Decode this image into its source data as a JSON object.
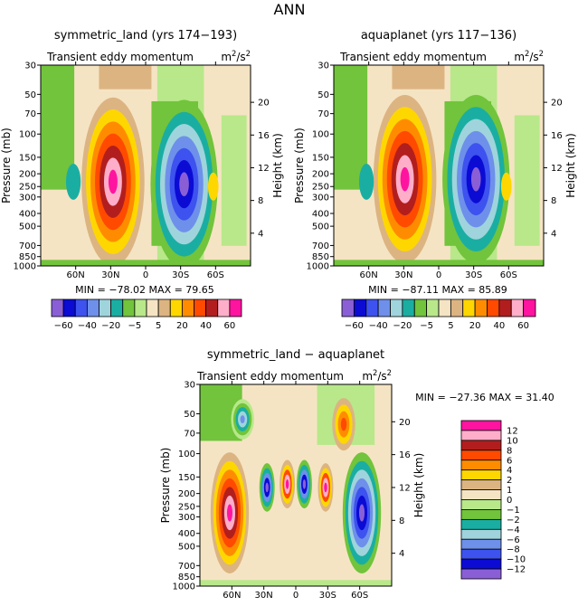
{
  "page": {
    "title": "ANN"
  },
  "colors": {
    "fill_order_low_to_high": [
      "#8a5fd6",
      "#0b0bd4",
      "#3d52ee",
      "#6e90ea",
      "#9fd4dc",
      "#1aaea2",
      "#71c43b",
      "#b8e88a",
      "#f5e4c3",
      "#dcb482",
      "#ffd700",
      "#ff8c00",
      "#ff4a00",
      "#b21e1e",
      "#ffaec9",
      "#ff14a0"
    ],
    "wave_mid": "#8ec95a",
    "wave_high": "#f2c878"
  },
  "chart_data": [
    {
      "type": "heatmap",
      "name": "panel-symmetric-land",
      "title": "symmetric_land (yrs 174−193)",
      "variable": "Transient eddy momentum",
      "units": "m²/s²",
      "ylabel": "Pressure (mb)",
      "y2label": "Height (km)",
      "x_ticks": [
        "60N",
        "30N",
        "0",
        "30S",
        "60S"
      ],
      "y_ticks": [
        "30",
        "50",
        "70",
        "100",
        "150",
        "200",
        "250",
        "300",
        "400",
        "500",
        "700",
        "850",
        "1000"
      ],
      "y2_ticks": [
        "20",
        "16",
        "12",
        "8",
        "4"
      ],
      "min_max_text": "MIN = −78.02   MAX = 79.65",
      "min": -78.02,
      "max": 79.65,
      "colorbar_labels": [
        "−60",
        "−40",
        "−20",
        "−5",
        "5",
        "20",
        "40",
        "60"
      ],
      "colorbar_levels": [
        -60,
        -50,
        -40,
        -30,
        -20,
        -10,
        -5,
        0,
        5,
        10,
        20,
        30,
        40,
        50,
        60
      ],
      "extrema": [
        {
          "lat": 28,
          "pressure_mb": 230,
          "value": 79.65
        },
        {
          "lat": -33,
          "pressure_mb": 240,
          "value": -78.02
        }
      ]
    },
    {
      "type": "heatmap",
      "name": "panel-aquaplanet",
      "title": "aquaplanet (yrs 117−136)",
      "variable": "Transient eddy momentum",
      "units": "m²/s²",
      "ylabel": "Pressure (mb)",
      "y2label": "Height (km)",
      "x_ticks": [
        "60N",
        "30N",
        "0",
        "30S",
        "60S"
      ],
      "y_ticks": [
        "30",
        "50",
        "70",
        "100",
        "150",
        "200",
        "250",
        "300",
        "400",
        "500",
        "700",
        "850",
        "1000"
      ],
      "y2_ticks": [
        "20",
        "16",
        "12",
        "8",
        "4"
      ],
      "min_max_text": "MIN = −87.11   MAX = 85.89",
      "min": -87.11,
      "max": 85.89,
      "colorbar_labels": [
        "−60",
        "−40",
        "−20",
        "−5",
        "5",
        "20",
        "40",
        "60"
      ],
      "colorbar_levels": [
        -60,
        -50,
        -40,
        -30,
        -20,
        -10,
        -5,
        0,
        5,
        10,
        20,
        30,
        40,
        50,
        60
      ],
      "extrema": [
        {
          "lat": 29,
          "pressure_mb": 220,
          "value": 85.89
        },
        {
          "lat": -32,
          "pressure_mb": 220,
          "value": -87.11
        }
      ]
    },
    {
      "type": "heatmap",
      "name": "panel-difference",
      "title": "symmetric_land − aquaplanet",
      "variable": "Transient eddy momentum",
      "units": "m²/s²",
      "ylabel": "Pressure (mb)",
      "y2label": "Height (km)",
      "x_ticks": [
        "60N",
        "30N",
        "0",
        "30S",
        "60S"
      ],
      "y_ticks": [
        "30",
        "50",
        "70",
        "100",
        "150",
        "200",
        "250",
        "300",
        "400",
        "500",
        "700",
        "850",
        "1000"
      ],
      "y2_ticks": [
        "20",
        "16",
        "12",
        "8",
        "4"
      ],
      "min_max_text": "MIN = −27.36   MAX = 31.40",
      "min": -27.36,
      "max": 31.4,
      "colorbar_labels": [
        "12",
        "10",
        "8",
        "6",
        "4",
        "2",
        "1",
        "0",
        "−1",
        "−2",
        "−4",
        "−6",
        "−8",
        "−10",
        "−12"
      ],
      "colorbar_levels": [
        -12,
        -10,
        -8,
        -6,
        -4,
        -2,
        -1,
        0,
        1,
        2,
        4,
        6,
        8,
        10,
        12
      ]
    }
  ]
}
